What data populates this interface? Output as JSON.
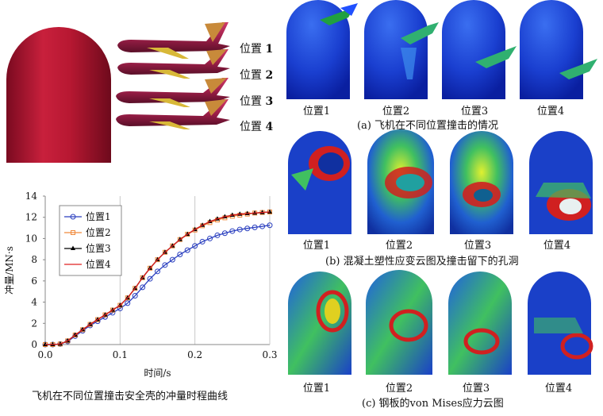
{
  "top_left": {
    "positions": [
      {
        "label": "位置",
        "num": "1"
      },
      {
        "label": "位置",
        "num": "2"
      },
      {
        "label": "位置",
        "num": "3"
      },
      {
        "label": "位置",
        "num": "4"
      }
    ]
  },
  "panel_a": {
    "labels": [
      "位置1",
      "位置2",
      "位置3",
      "位置4"
    ],
    "caption": "(a) 飞机在不同位置撞击的情况"
  },
  "panel_b": {
    "labels": [
      "位置1",
      "位置2",
      "位置3",
      "位置4"
    ],
    "caption": "(b) 混凝土塑性应变云图及撞击留下的孔洞"
  },
  "panel_c": {
    "labels": [
      "位置1",
      "位置2",
      "位置3",
      "位置4"
    ],
    "caption": "(c) 钢板的von Mises应力云图"
  },
  "chart_caption": "飞机在不同位置撞击安全壳的冲量时程曲线",
  "chart_data": {
    "type": "line",
    "xlabel": "时间/s",
    "ylabel": "冲量/MN·s",
    "xlim": [
      0,
      0.3
    ],
    "ylim": [
      0,
      14
    ],
    "xticks": [
      "0.0",
      "0.1",
      "0.2",
      "0.3"
    ],
    "yticks": [
      "0",
      "2",
      "4",
      "6",
      "8",
      "10",
      "12",
      "14"
    ],
    "grid": "vertical",
    "legend_position": "top-left",
    "x": [
      0,
      0.01,
      0.02,
      0.03,
      0.04,
      0.05,
      0.06,
      0.07,
      0.08,
      0.09,
      0.1,
      0.11,
      0.12,
      0.13,
      0.14,
      0.15,
      0.16,
      0.17,
      0.18,
      0.19,
      0.2,
      0.21,
      0.22,
      0.23,
      0.24,
      0.25,
      0.26,
      0.27,
      0.28,
      0.29,
      0.3
    ],
    "series": [
      {
        "name": "位置1",
        "color": "#2a3fbf",
        "marker": "circle",
        "values": [
          0,
          0,
          0.05,
          0.3,
          0.8,
          1.3,
          1.8,
          2.2,
          2.6,
          3.0,
          3.4,
          3.9,
          4.6,
          5.4,
          6.2,
          6.9,
          7.5,
          8.0,
          8.5,
          8.9,
          9.3,
          9.7,
          10.0,
          10.3,
          10.5,
          10.7,
          10.85,
          10.95,
          11.05,
          11.15,
          11.25
        ]
      },
      {
        "name": "位置2",
        "color": "#f08a3c",
        "marker": "square",
        "values": [
          0,
          0,
          0.05,
          0.35,
          0.9,
          1.4,
          1.9,
          2.35,
          2.8,
          3.25,
          3.7,
          4.4,
          5.3,
          6.3,
          7.2,
          8.0,
          8.7,
          9.3,
          9.9,
          10.4,
          10.8,
          11.2,
          11.5,
          11.75,
          11.95,
          12.1,
          12.2,
          12.3,
          12.4,
          12.45,
          12.5
        ]
      },
      {
        "name": "位置3",
        "color": "#000000",
        "marker": "triangle",
        "values": [
          0,
          0,
          0.05,
          0.35,
          0.9,
          1.4,
          1.9,
          2.35,
          2.8,
          3.25,
          3.7,
          4.4,
          5.3,
          6.3,
          7.2,
          8.0,
          8.7,
          9.3,
          9.9,
          10.4,
          10.85,
          11.25,
          11.6,
          11.85,
          12.05,
          12.2,
          12.3,
          12.35,
          12.4,
          12.45,
          12.5
        ]
      },
      {
        "name": "位置4",
        "color": "#e02020",
        "marker": "none",
        "values": [
          0,
          0,
          0.05,
          0.35,
          0.9,
          1.4,
          1.9,
          2.35,
          2.8,
          3.25,
          3.7,
          4.4,
          5.3,
          6.3,
          7.2,
          8.0,
          8.7,
          9.3,
          9.9,
          10.4,
          10.85,
          11.25,
          11.6,
          11.85,
          12.05,
          12.2,
          12.3,
          12.35,
          12.4,
          12.45,
          12.5
        ]
      }
    ]
  }
}
